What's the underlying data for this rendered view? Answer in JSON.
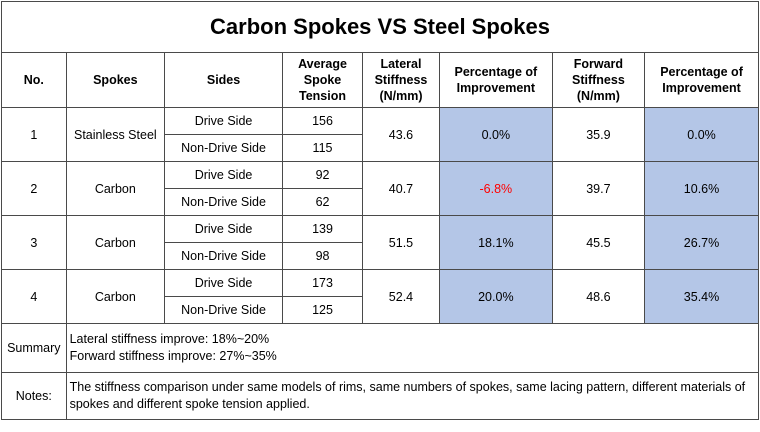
{
  "title": "Carbon Spokes VS Steel Spokes",
  "headers": {
    "no": "No.",
    "spokes": "Spokes",
    "sides": "Sides",
    "tension": "Average Spoke Tension",
    "lateral": "Lateral Stiffness (N/mm)",
    "lat_pct": "Percentage of Improvement",
    "forward": "Forward Stiffness (N/mm)",
    "fwd_pct": "Percentage of Improvement"
  },
  "rows": [
    {
      "no": "1",
      "spokes": "Stainless Steel",
      "drive": "Drive Side",
      "drive_tension": "156",
      "nondrive": "Non-Drive Side",
      "nondrive_tension": "115",
      "lateral": "43.6",
      "lat_pct": "0.0%",
      "forward": "35.9",
      "fwd_pct": "0.0%"
    },
    {
      "no": "2",
      "spokes": "Carbon",
      "drive": "Drive Side",
      "drive_tension": "92",
      "nondrive": "Non-Drive Side",
      "nondrive_tension": "62",
      "lateral": "40.7",
      "lat_pct": "-6.8%",
      "forward": "39.7",
      "fwd_pct": "10.6%"
    },
    {
      "no": "3",
      "spokes": "Carbon",
      "drive": "Drive Side",
      "drive_tension": "139",
      "nondrive": "Non-Drive Side",
      "nondrive_tension": "98",
      "lateral": "51.5",
      "lat_pct": "18.1%",
      "forward": "45.5",
      "fwd_pct": "26.7%"
    },
    {
      "no": "4",
      "spokes": "Carbon",
      "drive": "Drive Side",
      "drive_tension": "173",
      "nondrive": "Non-Drive Side",
      "nondrive_tension": "125",
      "lateral": "52.4",
      "lat_pct": "20.0%",
      "forward": "48.6",
      "fwd_pct": "35.4%"
    }
  ],
  "summary": {
    "label": "Summary",
    "line1": "Lateral stiffness improve: 18%~20%",
    "line2": "Forward stiffness improve: 27%~35%"
  },
  "notes": {
    "label": "Notes:",
    "text": "The stiffness comparison under same models of rims, same numbers of spokes, same lacing pattern, different materials of spokes and different spoke tension applied."
  },
  "colors": {
    "highlight": "#b4c6e7",
    "negative": "#ff0000"
  }
}
